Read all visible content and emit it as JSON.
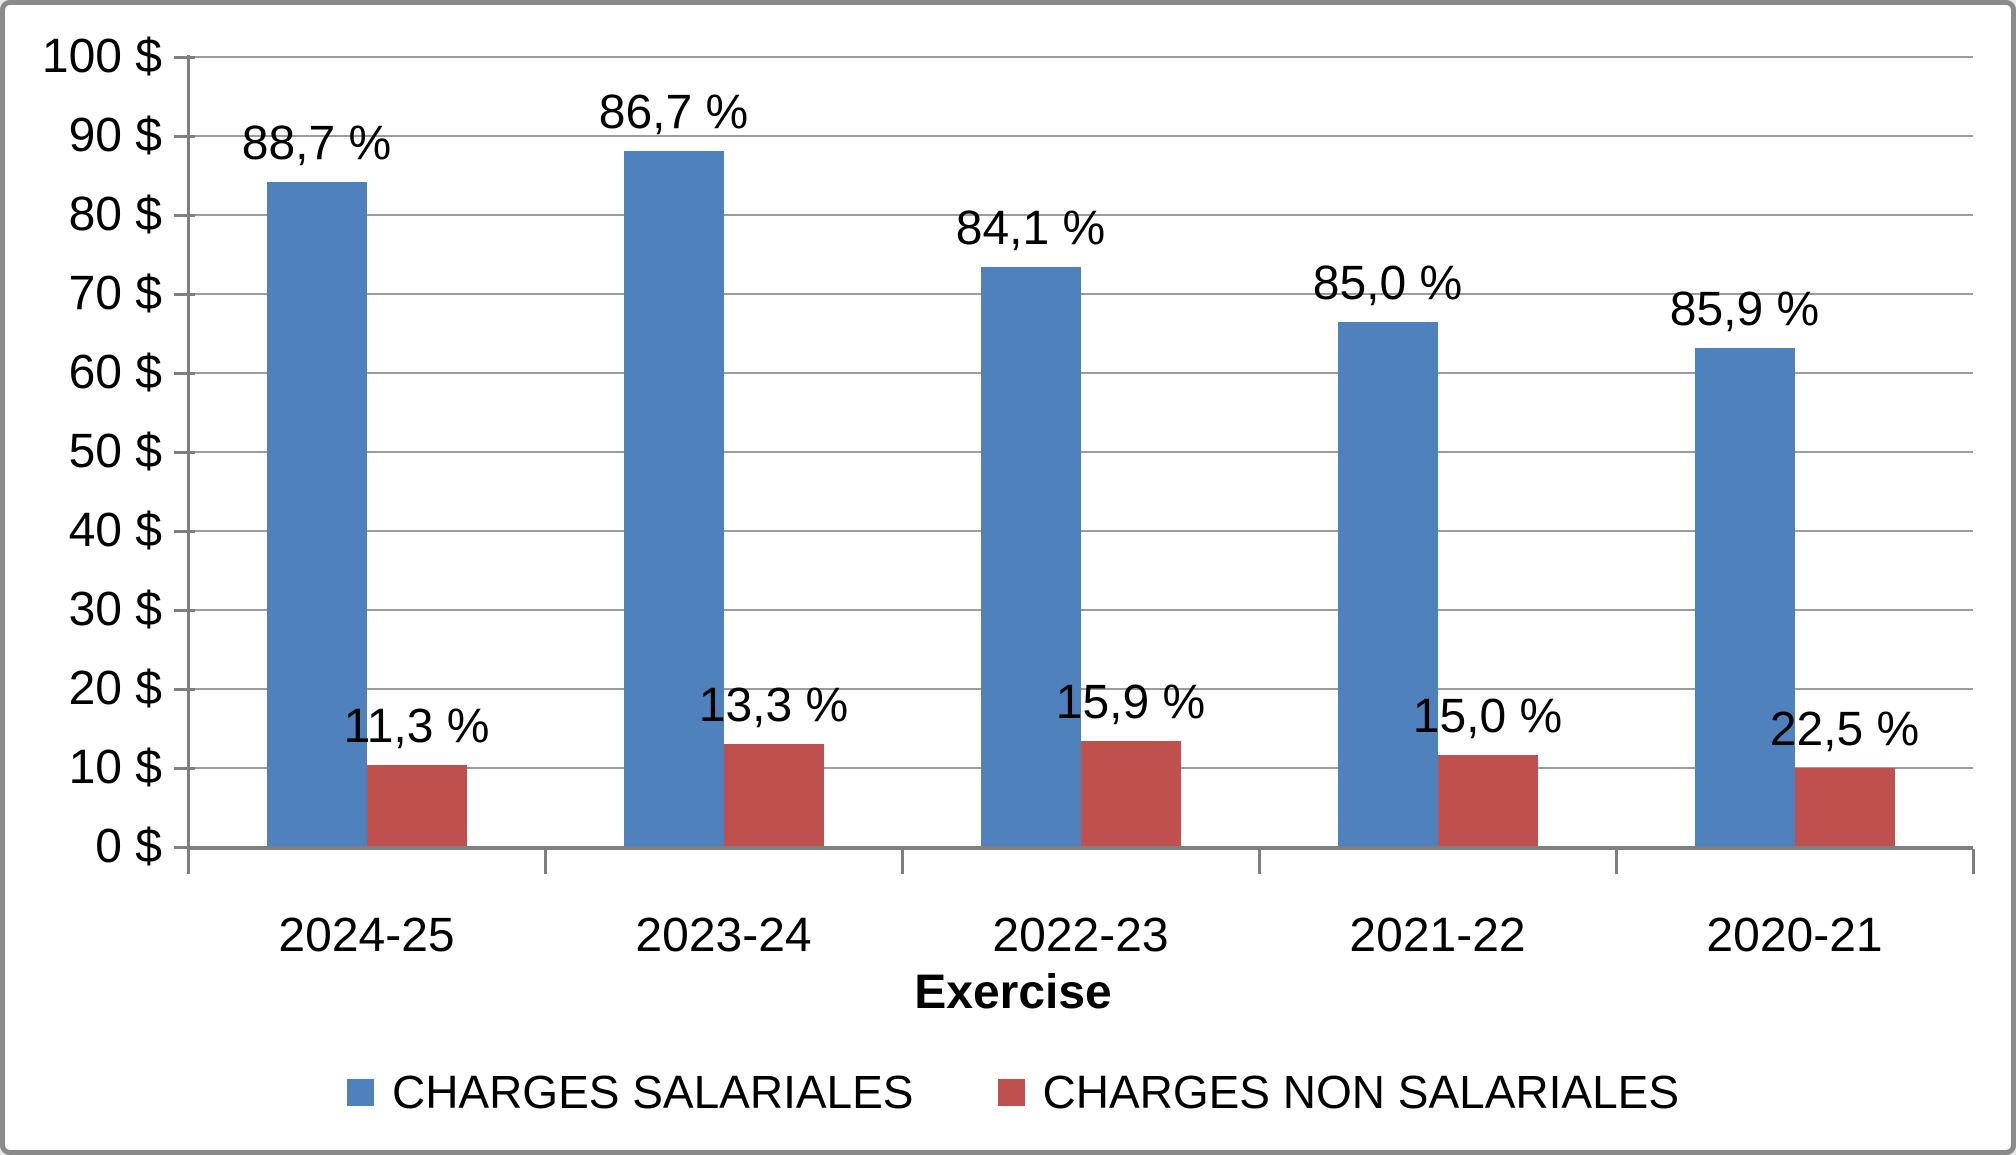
{
  "chart_data": {
    "type": "bar",
    "title": "",
    "xlabel": "Exercise",
    "ylabel": "",
    "categories": [
      "2024-25",
      "2023-24",
      "2022-23",
      "2021-22",
      "2020-21"
    ],
    "series": [
      {
        "name": "CHARGES SALARIALES",
        "color": "#4F81BD",
        "values": [
          84.2,
          88.1,
          73.4,
          66.5,
          63.2
        ],
        "data_labels": [
          "88,7 %",
          "86,7 %",
          "84,1 %",
          "85,0 %",
          "85,9 %"
        ]
      },
      {
        "name": "CHARGES NON SALARIALES",
        "color": "#C0504D",
        "values": [
          10.4,
          13.1,
          13.4,
          11.7,
          10.0
        ],
        "data_labels": [
          "11,3 %",
          "13,3 %",
          "15,9 %",
          "15,0 %",
          "22,5 %"
        ]
      }
    ],
    "ylim": [
      0,
      100
    ],
    "ytick_values": [
      0,
      10,
      20,
      30,
      40,
      50,
      60,
      70,
      80,
      90,
      100
    ],
    "ytick_labels": [
      "0 $",
      "10 $",
      "20 $",
      "30 $",
      "40 $",
      "50 $",
      "60 $",
      "70 $",
      "80 $",
      "90 $",
      "100 $"
    ],
    "grid": "horizontal",
    "legend_position": "bottom",
    "colors": {
      "gridline": "#9c9c9c",
      "axis": "#7f7f7f",
      "frame_border": "#8a8a8a",
      "text": "#000000",
      "background": "#ffffff"
    }
  }
}
